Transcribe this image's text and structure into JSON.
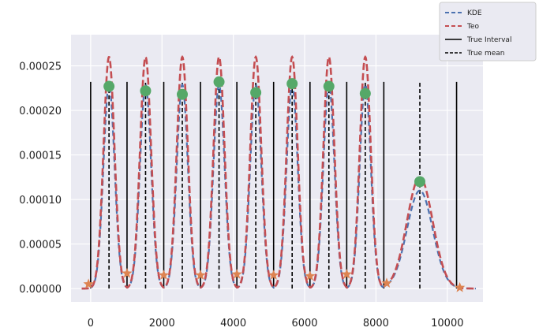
{
  "chart_data": {
    "type": "line",
    "title": "",
    "xlabel": "",
    "ylabel": "",
    "xlim": [
      -550,
      11000
    ],
    "ylim": [
      -1.5e-05,
      0.000285
    ],
    "x_ticks": [
      0,
      2000,
      4000,
      6000,
      8000,
      10000
    ],
    "x_tick_labels": [
      "0",
      "2000",
      "4000",
      "6000",
      "8000",
      "10000"
    ],
    "y_ticks": [
      0.0,
      5e-05,
      0.0001,
      0.00015,
      0.0002,
      0.00025
    ],
    "y_tick_labels": [
      "0.00000",
      "0.00005",
      "0.00010",
      "0.00015",
      "0.00020",
      "0.00025"
    ],
    "grid": true,
    "legend_position": "top-right",
    "colors": {
      "kde": "#4c72b0",
      "teo": "#c44e52",
      "interval": "#000000",
      "mean": "#000000",
      "peak_marker": "#55a868",
      "boundary_marker": "#dd8452",
      "plot_bg": "#eaeaf2",
      "grid": "#ffffff"
    },
    "series": [
      {
        "name": "KDE",
        "style": "dashed",
        "color": "#4c72b0"
      },
      {
        "name": "Teo",
        "style": "dashed",
        "color": "#c44e52"
      },
      {
        "name": "True Interval",
        "style": "solid",
        "color": "#000000"
      },
      {
        "name": "True mean",
        "style": "dashed",
        "color": "#000000"
      }
    ],
    "peaks": [
      {
        "mean": 515,
        "sigma": 155,
        "teo_peak": 0.00026
      },
      {
        "mean": 1540,
        "sigma": 155,
        "teo_peak": 0.00026
      },
      {
        "mean": 2570,
        "sigma": 155,
        "teo_peak": 0.00026
      },
      {
        "mean": 3600,
        "sigma": 155,
        "teo_peak": 0.00026
      },
      {
        "mean": 4630,
        "sigma": 155,
        "teo_peak": 0.00026
      },
      {
        "mean": 5650,
        "sigma": 155,
        "teo_peak": 0.00026
      },
      {
        "mean": 6680,
        "sigma": 155,
        "teo_peak": 0.00026
      },
      {
        "mean": 7700,
        "sigma": 155,
        "teo_peak": 0.00026
      },
      {
        "mean": 9230,
        "sigma": 360,
        "teo_peak": 0.000125
      }
    ],
    "true_interval_bounds": [
      0,
      1020,
      2050,
      3080,
      4100,
      5130,
      6150,
      7180,
      8220,
      10260
    ],
    "true_means": [
      515,
      1540,
      2570,
      3600,
      4630,
      5650,
      6680,
      7700,
      9230
    ],
    "vertical_line_top": 0.000232,
    "kde_peak_markers": [
      {
        "x": 515,
        "y": 0.000227
      },
      {
        "x": 1540,
        "y": 0.000222
      },
      {
        "x": 2570,
        "y": 0.000218
      },
      {
        "x": 3600,
        "y": 0.000232
      },
      {
        "x": 4630,
        "y": 0.00022
      },
      {
        "x": 5650,
        "y": 0.00023
      },
      {
        "x": 6680,
        "y": 0.000227
      },
      {
        "x": 7700,
        "y": 0.000219
      },
      {
        "x": 9230,
        "y": 0.00012
      }
    ],
    "boundary_markers": [
      {
        "x": -60,
        "y": 5e-06
      },
      {
        "x": 1020,
        "y": 1.7e-05
      },
      {
        "x": 2050,
        "y": 1.5e-05
      },
      {
        "x": 3080,
        "y": 1.5e-05
      },
      {
        "x": 4100,
        "y": 1.6e-05
      },
      {
        "x": 5130,
        "y": 1.5e-05
      },
      {
        "x": 6150,
        "y": 1.4e-05
      },
      {
        "x": 7180,
        "y": 1.6e-05
      },
      {
        "x": 8300,
        "y": 6e-06
      },
      {
        "x": 10350,
        "y": 1e-06
      }
    ],
    "curve_range": [
      -250,
      10800
    ]
  }
}
